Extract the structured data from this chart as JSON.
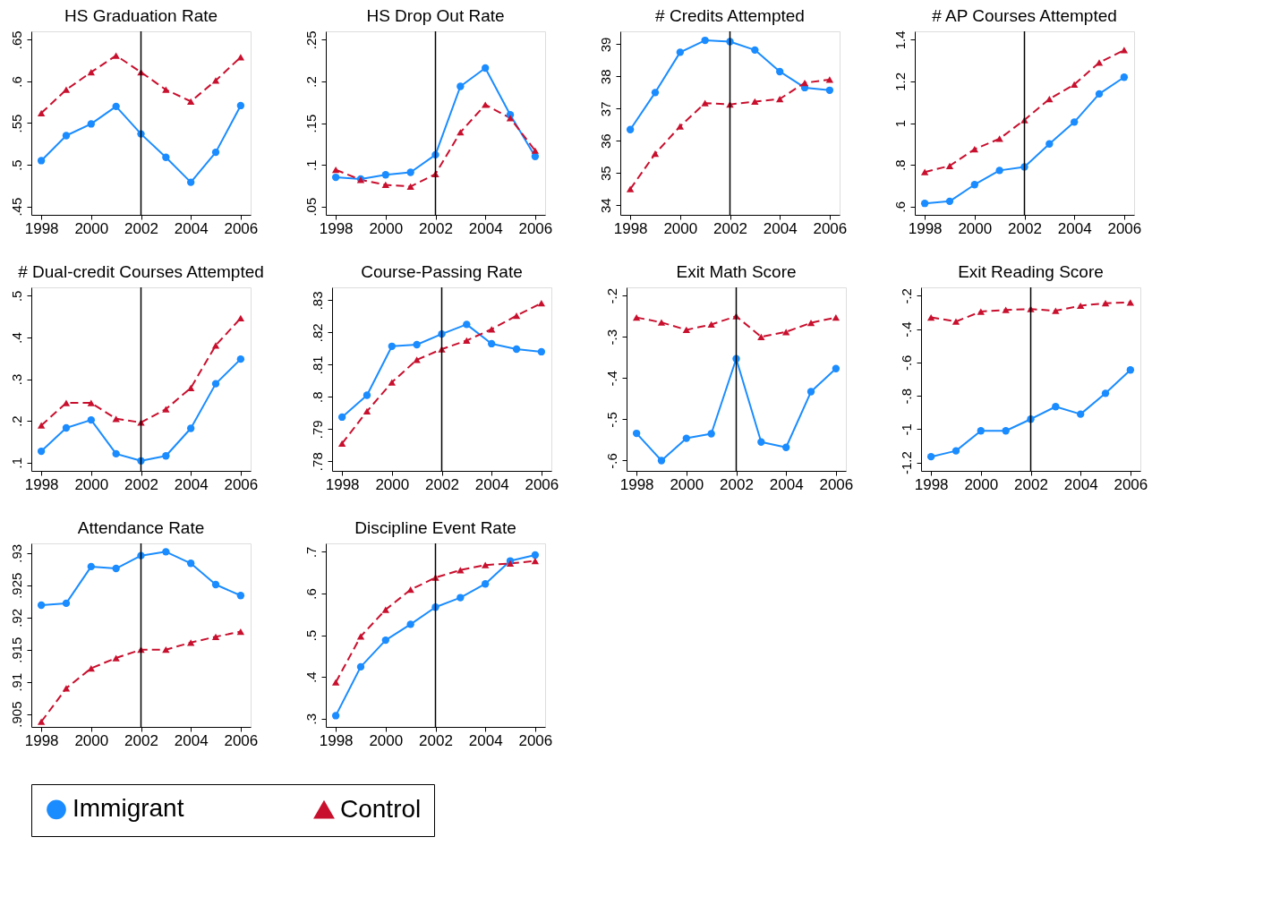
{
  "chart_data": [
    {
      "type": "line",
      "title": "HS Graduation Rate",
      "xlim": [
        1997.6,
        2006.4
      ],
      "xticks": [
        1998,
        2000,
        2002,
        2004,
        2006
      ],
      "ylim": [
        0.44,
        0.66
      ],
      "yticks": [
        {
          "value": 0.45,
          "label": ".45"
        },
        {
          "value": 0.5,
          "label": ".5"
        },
        {
          "value": 0.55,
          "label": ".55"
        },
        {
          "value": 0.6,
          "label": ".6"
        },
        {
          "value": 0.65,
          "label": ".65"
        }
      ],
      "x": [
        1998,
        1999,
        2000,
        2001,
        2002,
        2003,
        2004,
        2005,
        2006
      ],
      "legend": "bottom",
      "grid": false,
      "ref_lines": [
        {
          "axis": "x",
          "value": 2002,
          "color": "#000000"
        }
      ],
      "series": [
        {
          "name": "Immigrant",
          "color": "#1a8cff",
          "marker": "circle",
          "line_style": "solid",
          "values": [
            0.505,
            0.535,
            0.549,
            0.57,
            0.537,
            0.509,
            0.479,
            0.515,
            0.571
          ]
        },
        {
          "name": "Control",
          "color": "#c8102e",
          "marker": "triangle",
          "line_style": "dashed",
          "values": [
            0.562,
            0.59,
            0.611,
            0.631,
            0.611,
            0.59,
            0.576,
            0.601,
            0.629
          ]
        }
      ]
    },
    {
      "type": "line",
      "title": "HS Drop Out Rate",
      "xlim": [
        1997.6,
        2006.4
      ],
      "xticks": [
        1998,
        2000,
        2002,
        2004,
        2006
      ],
      "ylim": [
        0.04,
        0.26
      ],
      "yticks": [
        {
          "value": 0.05,
          "label": ".05"
        },
        {
          "value": 0.1,
          "label": ".1"
        },
        {
          "value": 0.15,
          "label": ".15"
        },
        {
          "value": 0.2,
          "label": ".2"
        },
        {
          "value": 0.25,
          "label": ".25"
        }
      ],
      "x": [
        1998,
        1999,
        2000,
        2001,
        2002,
        2003,
        2004,
        2005,
        2006
      ],
      "legend": "bottom",
      "grid": false,
      "ref_lines": [
        {
          "axis": "x",
          "value": 2002,
          "color": "#000000"
        }
      ],
      "series": [
        {
          "name": "Immigrant",
          "color": "#1a8cff",
          "marker": "circle",
          "line_style": "solid",
          "values": [
            0.085,
            0.083,
            0.088,
            0.091,
            0.112,
            0.194,
            0.216,
            0.16,
            0.11
          ]
        },
        {
          "name": "Control",
          "color": "#c8102e",
          "marker": "triangle",
          "line_style": "dashed",
          "values": [
            0.094,
            0.082,
            0.076,
            0.074,
            0.089,
            0.139,
            0.172,
            0.156,
            0.117
          ]
        }
      ]
    },
    {
      "type": "line",
      "title": "# Credits Attempted",
      "xlim": [
        1997.6,
        2006.4
      ],
      "xticks": [
        1998,
        2000,
        2002,
        2004,
        2006
      ],
      "ylim": [
        33.7,
        39.4
      ],
      "yticks": [
        34,
        35,
        36,
        37,
        38,
        39
      ],
      "x": [
        1998,
        1999,
        2000,
        2001,
        2002,
        2003,
        2004,
        2005,
        2006
      ],
      "legend": "bottom",
      "grid": false,
      "ref_lines": [
        {
          "axis": "x",
          "value": 2002,
          "color": "#000000"
        }
      ],
      "series": [
        {
          "name": "Immigrant",
          "color": "#1a8cff",
          "marker": "circle",
          "line_style": "solid",
          "values": [
            36.35,
            37.5,
            38.75,
            39.12,
            39.08,
            38.82,
            38.15,
            37.65,
            37.57
          ]
        },
        {
          "name": "Control",
          "color": "#c8102e",
          "marker": "triangle",
          "line_style": "dashed",
          "values": [
            34.5,
            35.6,
            36.45,
            37.17,
            37.13,
            37.22,
            37.3,
            37.8,
            37.9
          ]
        }
      ]
    },
    {
      "type": "line",
      "title": "# AP Courses Attempted",
      "xlim": [
        1997.6,
        2006.4
      ],
      "xticks": [
        1998,
        2000,
        2002,
        2004,
        2006
      ],
      "ylim": [
        0.56,
        1.44
      ],
      "yticks": [
        {
          "value": 0.6,
          "label": ".6"
        },
        {
          "value": 0.8,
          "label": ".8"
        },
        1,
        1.2,
        1.4
      ],
      "x": [
        1998,
        1999,
        2000,
        2001,
        2002,
        2003,
        2004,
        2005,
        2006
      ],
      "legend": "bottom",
      "grid": false,
      "ref_lines": [
        {
          "axis": "x",
          "value": 2002,
          "color": "#000000"
        }
      ],
      "series": [
        {
          "name": "Immigrant",
          "color": "#1a8cff",
          "marker": "circle",
          "line_style": "solid",
          "values": [
            0.615,
            0.625,
            0.705,
            0.773,
            0.79,
            0.9,
            1.005,
            1.14,
            1.22
          ]
        },
        {
          "name": "Control",
          "color": "#c8102e",
          "marker": "triangle",
          "line_style": "dashed",
          "values": [
            0.765,
            0.795,
            0.875,
            0.925,
            1.015,
            1.115,
            1.185,
            1.29,
            1.35
          ]
        }
      ]
    },
    {
      "type": "line",
      "title": "# Dual-credit Courses Attempted",
      "xlim": [
        1997.6,
        2006.4
      ],
      "xticks": [
        1998,
        2000,
        2002,
        2004,
        2006
      ],
      "ylim": [
        0.08,
        0.52
      ],
      "yticks": [
        {
          "value": 0.1,
          "label": ".1"
        },
        {
          "value": 0.2,
          "label": ".2"
        },
        {
          "value": 0.3,
          "label": ".3"
        },
        {
          "value": 0.4,
          "label": ".4"
        },
        {
          "value": 0.5,
          "label": ".5"
        }
      ],
      "x": [
        1998,
        1999,
        2000,
        2001,
        2002,
        2003,
        2004,
        2005,
        2006
      ],
      "legend": "bottom",
      "grid": false,
      "ref_lines": [
        {
          "axis": "x",
          "value": 2002,
          "color": "#000000"
        }
      ],
      "series": [
        {
          "name": "Immigrant",
          "color": "#1a8cff",
          "marker": "circle",
          "line_style": "solid",
          "values": [
            0.127,
            0.183,
            0.202,
            0.121,
            0.104,
            0.116,
            0.182,
            0.289,
            0.348
          ]
        },
        {
          "name": "Control",
          "color": "#c8102e",
          "marker": "triangle",
          "line_style": "dashed",
          "values": [
            0.189,
            0.243,
            0.243,
            0.205,
            0.196,
            0.228,
            0.279,
            0.381,
            0.446
          ]
        }
      ]
    },
    {
      "type": "line",
      "title": "Course-Passing Rate",
      "xlim": [
        1997.6,
        2006.4
      ],
      "xticks": [
        1998,
        2000,
        2002,
        2004,
        2006
      ],
      "ylim": [
        0.777,
        0.834
      ],
      "yticks": [
        {
          "value": 0.78,
          "label": ".78"
        },
        {
          "value": 0.79,
          "label": ".79"
        },
        {
          "value": 0.8,
          "label": ".8"
        },
        {
          "value": 0.81,
          "label": ".81"
        },
        {
          "value": 0.82,
          "label": ".82"
        },
        {
          "value": 0.83,
          "label": ".83"
        }
      ],
      "x": [
        1998,
        1999,
        2000,
        2001,
        2002,
        2003,
        2004,
        2005,
        2006
      ],
      "legend": "bottom",
      "grid": false,
      "ref_lines": [
        {
          "axis": "x",
          "value": 2002,
          "color": "#000000"
        }
      ],
      "series": [
        {
          "name": "Immigrant",
          "color": "#1a8cff",
          "marker": "circle",
          "line_style": "solid",
          "values": [
            0.7937,
            0.8005,
            0.8157,
            0.8162,
            0.8195,
            0.8225,
            0.8165,
            0.8148,
            0.814
          ]
        },
        {
          "name": "Control",
          "color": "#c8102e",
          "marker": "triangle",
          "line_style": "dashed",
          "values": [
            0.7855,
            0.7955,
            0.8045,
            0.8115,
            0.8148,
            0.8175,
            0.821,
            0.8252,
            0.8291
          ]
        }
      ]
    },
    {
      "type": "line",
      "title": "Exit Math Score",
      "xlim": [
        1997.6,
        2006.4
      ],
      "xticks": [
        1998,
        2000,
        2002,
        2004,
        2006
      ],
      "ylim": [
        -0.625,
        -0.18
      ],
      "yticks": [
        {
          "value": -0.6,
          "label": "-.6"
        },
        {
          "value": -0.5,
          "label": "-.5"
        },
        {
          "value": -0.4,
          "label": "-.4"
        },
        {
          "value": -0.3,
          "label": "-.3"
        },
        {
          "value": -0.2,
          "label": "-.2"
        }
      ],
      "x": [
        1998,
        1999,
        2000,
        2001,
        2002,
        2003,
        2004,
        2005,
        2006
      ],
      "legend": "bottom",
      "grid": false,
      "ref_lines": [
        {
          "axis": "x",
          "value": 2002,
          "color": "#000000"
        }
      ],
      "series": [
        {
          "name": "Immigrant",
          "color": "#1a8cff",
          "marker": "circle",
          "line_style": "solid",
          "values": [
            -0.534,
            -0.6,
            -0.546,
            -0.535,
            -0.353,
            -0.555,
            -0.568,
            -0.433,
            -0.377
          ]
        },
        {
          "name": "Control",
          "color": "#c8102e",
          "marker": "triangle",
          "line_style": "dashed",
          "values": [
            -0.253,
            -0.265,
            -0.283,
            -0.27,
            -0.25,
            -0.3,
            -0.288,
            -0.266,
            -0.253
          ]
        }
      ]
    },
    {
      "type": "line",
      "title": "Exit Reading Score",
      "xlim": [
        1997.6,
        2006.4
      ],
      "xticks": [
        1998,
        2000,
        2002,
        2004,
        2006
      ],
      "ylim": [
        -1.25,
        -0.15
      ],
      "yticks": [
        {
          "value": -1.2,
          "label": "-1.2"
        },
        -1,
        {
          "value": -0.8,
          "label": "-.8"
        },
        {
          "value": -0.6,
          "label": "-.6"
        },
        {
          "value": -0.4,
          "label": "-.4"
        },
        {
          "value": -0.2,
          "label": "-.2"
        }
      ],
      "x": [
        1998,
        1999,
        2000,
        2001,
        2002,
        2003,
        2004,
        2005,
        2006
      ],
      "legend": "bottom",
      "grid": false,
      "ref_lines": [
        {
          "axis": "x",
          "value": 2002,
          "color": "#000000"
        }
      ],
      "series": [
        {
          "name": "Immigrant",
          "color": "#1a8cff",
          "marker": "circle",
          "line_style": "solid",
          "values": [
            -1.165,
            -1.13,
            -1.01,
            -1.01,
            -0.94,
            -0.865,
            -0.91,
            -0.785,
            -0.645
          ]
        },
        {
          "name": "Control",
          "color": "#c8102e",
          "marker": "triangle",
          "line_style": "dashed",
          "values": [
            -0.33,
            -0.355,
            -0.295,
            -0.285,
            -0.28,
            -0.29,
            -0.26,
            -0.245,
            -0.24
          ]
        }
      ]
    },
    {
      "type": "line",
      "title": "Attendance Rate",
      "xlim": [
        1997.6,
        2006.4
      ],
      "xticks": [
        1998,
        2000,
        2002,
        2004,
        2006
      ],
      "ylim": [
        0.903,
        0.9315
      ],
      "yticks": [
        {
          "value": 0.905,
          "label": ".905"
        },
        {
          "value": 0.91,
          "label": ".91"
        },
        {
          "value": 0.915,
          "label": ".915"
        },
        {
          "value": 0.92,
          "label": ".92"
        },
        {
          "value": 0.925,
          "label": ".925"
        },
        {
          "value": 0.93,
          "label": ".93"
        }
      ],
      "x": [
        1998,
        1999,
        2000,
        2001,
        2002,
        2003,
        2004,
        2005,
        2006
      ],
      "legend": "bottom",
      "grid": false,
      "ref_lines": [
        {
          "axis": "x",
          "value": 2002,
          "color": "#000000"
        }
      ],
      "series": [
        {
          "name": "Immigrant",
          "color": "#1a8cff",
          "marker": "circle",
          "line_style": "solid",
          "values": [
            0.9219,
            0.9222,
            0.9279,
            0.9276,
            0.9296,
            0.9302,
            0.9284,
            0.9251,
            0.9234
          ]
        },
        {
          "name": "Control",
          "color": "#c8102e",
          "marker": "triangle",
          "line_style": "dashed",
          "values": [
            0.9038,
            0.909,
            0.9121,
            0.9137,
            0.915,
            0.915,
            0.9161,
            0.917,
            0.9178
          ]
        }
      ]
    },
    {
      "type": "line",
      "title": "Discipline Event Rate",
      "xlim": [
        1997.6,
        2006.4
      ],
      "xticks": [
        1998,
        2000,
        2002,
        2004,
        2006
      ],
      "ylim": [
        0.28,
        0.72
      ],
      "yticks": [
        {
          "value": 0.3,
          "label": ".3"
        },
        {
          "value": 0.4,
          "label": ".4"
        },
        {
          "value": 0.5,
          "label": ".5"
        },
        {
          "value": 0.6,
          "label": ".6"
        },
        {
          "value": 0.7,
          "label": ".7"
        }
      ],
      "x": [
        1998,
        1999,
        2000,
        2001,
        2002,
        2003,
        2004,
        2005,
        2006
      ],
      "legend": "bottom",
      "grid": false,
      "ref_lines": [
        {
          "axis": "x",
          "value": 2002,
          "color": "#000000"
        }
      ],
      "series": [
        {
          "name": "Immigrant",
          "color": "#1a8cff",
          "marker": "circle",
          "line_style": "solid",
          "values": [
            0.307,
            0.424,
            0.488,
            0.526,
            0.567,
            0.59,
            0.623,
            0.678,
            0.692
          ]
        },
        {
          "name": "Control",
          "color": "#c8102e",
          "marker": "triangle",
          "line_style": "dashed",
          "values": [
            0.387,
            0.497,
            0.561,
            0.609,
            0.638,
            0.656,
            0.668,
            0.672,
            0.678
          ]
        }
      ]
    }
  ]
}
